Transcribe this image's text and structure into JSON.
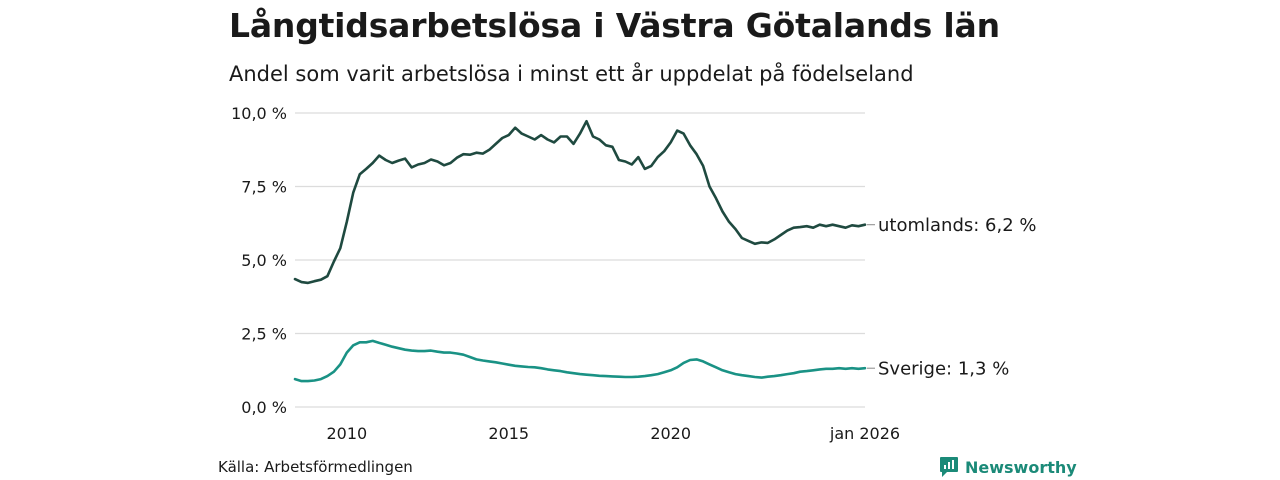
{
  "title": "Långtidsarbetslösa i Västra Götalands län",
  "subtitle": "Andel som varit arbetslösa i minst ett år uppdelat på födelseland",
  "source": "Källa: Arbetsförmedlingen",
  "brand": "Newsworthy",
  "colors": {
    "utomlands": "#1f4a40",
    "sverige": "#1a9285",
    "grid": "#dcdcdc",
    "brand": "#1b8a78"
  },
  "chart_data": {
    "type": "line",
    "title": "Långtidsarbetslösa i Västra Götalands län",
    "ylim": [
      0,
      10
    ],
    "xlim": [
      2008.4,
      2026.0
    ],
    "y_ticks": [
      {
        "value": 0,
        "label": "0,0 %"
      },
      {
        "value": 2.5,
        "label": "2,5 %"
      },
      {
        "value": 5,
        "label": "5,0 %"
      },
      {
        "value": 7.5,
        "label": "7,5 %"
      },
      {
        "value": 10,
        "label": "10,0 %"
      }
    ],
    "x_ticks": [
      {
        "value": 2010,
        "label": "2010"
      },
      {
        "value": 2015,
        "label": "2015"
      },
      {
        "value": 2020,
        "label": "2020"
      },
      {
        "value": 2026,
        "label": "jan 2026"
      }
    ],
    "grid": true,
    "series": [
      {
        "name": "utomlands",
        "end_label": "utomlands: 6,2 %",
        "x": [
          2008.4,
          2008.6,
          2008.8,
          2009.0,
          2009.2,
          2009.4,
          2009.6,
          2009.8,
          2010.0,
          2010.2,
          2010.4,
          2010.6,
          2010.8,
          2011.0,
          2011.2,
          2011.4,
          2011.6,
          2011.8,
          2012.0,
          2012.2,
          2012.4,
          2012.6,
          2012.8,
          2013.0,
          2013.2,
          2013.4,
          2013.6,
          2013.8,
          2014.0,
          2014.2,
          2014.4,
          2014.6,
          2014.8,
          2015.0,
          2015.2,
          2015.4,
          2015.6,
          2015.8,
          2016.0,
          2016.2,
          2016.4,
          2016.6,
          2016.8,
          2017.0,
          2017.2,
          2017.4,
          2017.6,
          2017.8,
          2018.0,
          2018.2,
          2018.4,
          2018.6,
          2018.8,
          2019.0,
          2019.2,
          2019.4,
          2019.6,
          2019.8,
          2020.0,
          2020.2,
          2020.4,
          2020.6,
          2020.8,
          2021.0,
          2021.2,
          2021.4,
          2021.6,
          2021.8,
          2022.0,
          2022.2,
          2022.4,
          2022.6,
          2022.8,
          2023.0,
          2023.2,
          2023.4,
          2023.6,
          2023.8,
          2024.0,
          2024.2,
          2024.4,
          2024.6,
          2024.8,
          2025.0,
          2025.2,
          2025.4,
          2025.6,
          2025.8,
          2026.0
        ],
        "values": [
          4.35,
          4.25,
          4.22,
          4.28,
          4.33,
          4.45,
          4.95,
          5.4,
          6.3,
          7.3,
          7.92,
          8.1,
          8.3,
          8.55,
          8.4,
          8.3,
          8.38,
          8.45,
          8.15,
          8.25,
          8.3,
          8.42,
          8.35,
          8.22,
          8.3,
          8.48,
          8.6,
          8.58,
          8.65,
          8.62,
          8.75,
          8.95,
          9.15,
          9.25,
          9.5,
          9.3,
          9.2,
          9.1,
          9.25,
          9.1,
          9.0,
          9.2,
          9.2,
          8.95,
          9.3,
          9.72,
          9.2,
          9.1,
          8.9,
          8.85,
          8.4,
          8.35,
          8.25,
          8.5,
          8.1,
          8.2,
          8.5,
          8.7,
          9.0,
          9.4,
          9.3,
          8.9,
          8.6,
          8.2,
          7.5,
          7.1,
          6.65,
          6.3,
          6.05,
          5.75,
          5.65,
          5.55,
          5.6,
          5.58,
          5.7,
          5.85,
          6.0,
          6.1,
          6.12,
          6.15,
          6.1,
          6.2,
          6.15,
          6.2,
          6.15,
          6.1,
          6.18,
          6.15,
          6.2
        ]
      },
      {
        "name": "Sverige",
        "end_label": "Sverige: 1,3 %",
        "x": [
          2008.4,
          2008.6,
          2008.8,
          2009.0,
          2009.2,
          2009.4,
          2009.6,
          2009.8,
          2010.0,
          2010.2,
          2010.4,
          2010.6,
          2010.8,
          2011.0,
          2011.2,
          2011.4,
          2011.6,
          2011.8,
          2012.0,
          2012.2,
          2012.4,
          2012.6,
          2012.8,
          2013.0,
          2013.2,
          2013.4,
          2013.6,
          2013.8,
          2014.0,
          2014.2,
          2014.4,
          2014.6,
          2014.8,
          2015.0,
          2015.2,
          2015.4,
          2015.6,
          2015.8,
          2016.0,
          2016.2,
          2016.4,
          2016.6,
          2016.8,
          2017.0,
          2017.2,
          2017.4,
          2017.6,
          2017.8,
          2018.0,
          2018.2,
          2018.4,
          2018.6,
          2018.8,
          2019.0,
          2019.2,
          2019.4,
          2019.6,
          2019.8,
          2020.0,
          2020.2,
          2020.4,
          2020.6,
          2020.8,
          2021.0,
          2021.2,
          2021.4,
          2021.6,
          2021.8,
          2022.0,
          2022.2,
          2022.4,
          2022.6,
          2022.8,
          2023.0,
          2023.2,
          2023.4,
          2023.6,
          2023.8,
          2024.0,
          2024.2,
          2024.4,
          2024.6,
          2024.8,
          2025.0,
          2025.2,
          2025.4,
          2025.6,
          2025.8,
          2026.0
        ],
        "values": [
          0.95,
          0.88,
          0.88,
          0.9,
          0.95,
          1.05,
          1.2,
          1.45,
          1.85,
          2.1,
          2.2,
          2.2,
          2.25,
          2.18,
          2.12,
          2.05,
          2.0,
          1.95,
          1.92,
          1.9,
          1.9,
          1.92,
          1.88,
          1.85,
          1.85,
          1.82,
          1.78,
          1.7,
          1.62,
          1.58,
          1.55,
          1.52,
          1.48,
          1.44,
          1.4,
          1.38,
          1.36,
          1.35,
          1.32,
          1.28,
          1.25,
          1.22,
          1.18,
          1.15,
          1.12,
          1.1,
          1.08,
          1.06,
          1.05,
          1.04,
          1.03,
          1.02,
          1.02,
          1.03,
          1.05,
          1.08,
          1.12,
          1.18,
          1.25,
          1.35,
          1.5,
          1.6,
          1.62,
          1.55,
          1.45,
          1.35,
          1.25,
          1.18,
          1.12,
          1.08,
          1.05,
          1.02,
          1.0,
          1.03,
          1.05,
          1.08,
          1.12,
          1.15,
          1.2,
          1.22,
          1.25,
          1.28,
          1.3,
          1.3,
          1.32,
          1.3,
          1.32,
          1.3,
          1.32
        ]
      }
    ]
  }
}
